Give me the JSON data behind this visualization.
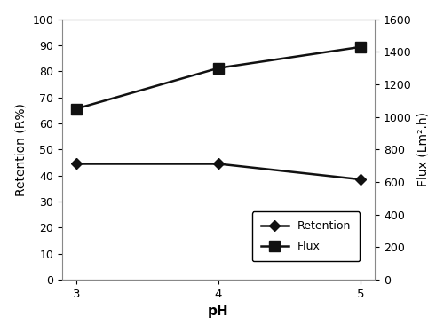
{
  "ph": [
    3,
    4,
    5
  ],
  "retention": [
    44.5,
    44.5,
    38.5
  ],
  "flux": [
    1050,
    1300,
    1430
  ],
  "retention_label": "Retention",
  "flux_label": "Flux",
  "xlabel": "pH",
  "ylabel_left": "Retention (R%)",
  "ylabel_right": "Flux (Lm².h)",
  "ylim_left": [
    0,
    100
  ],
  "ylim_right": [
    0,
    1600
  ],
  "yticks_left": [
    0,
    10,
    20,
    30,
    40,
    50,
    60,
    70,
    80,
    90,
    100
  ],
  "yticks_right": [
    0,
    200,
    400,
    600,
    800,
    1000,
    1200,
    1400,
    1600
  ],
  "xticks": [
    3,
    4,
    5
  ],
  "line_color": "#111111",
  "marker_retention": "D",
  "marker_flux": "s",
  "marker_size_retention": 6,
  "marker_size_flux": 8,
  "line_width": 1.8,
  "figsize": [
    5.0,
    3.75
  ],
  "dpi": 100
}
